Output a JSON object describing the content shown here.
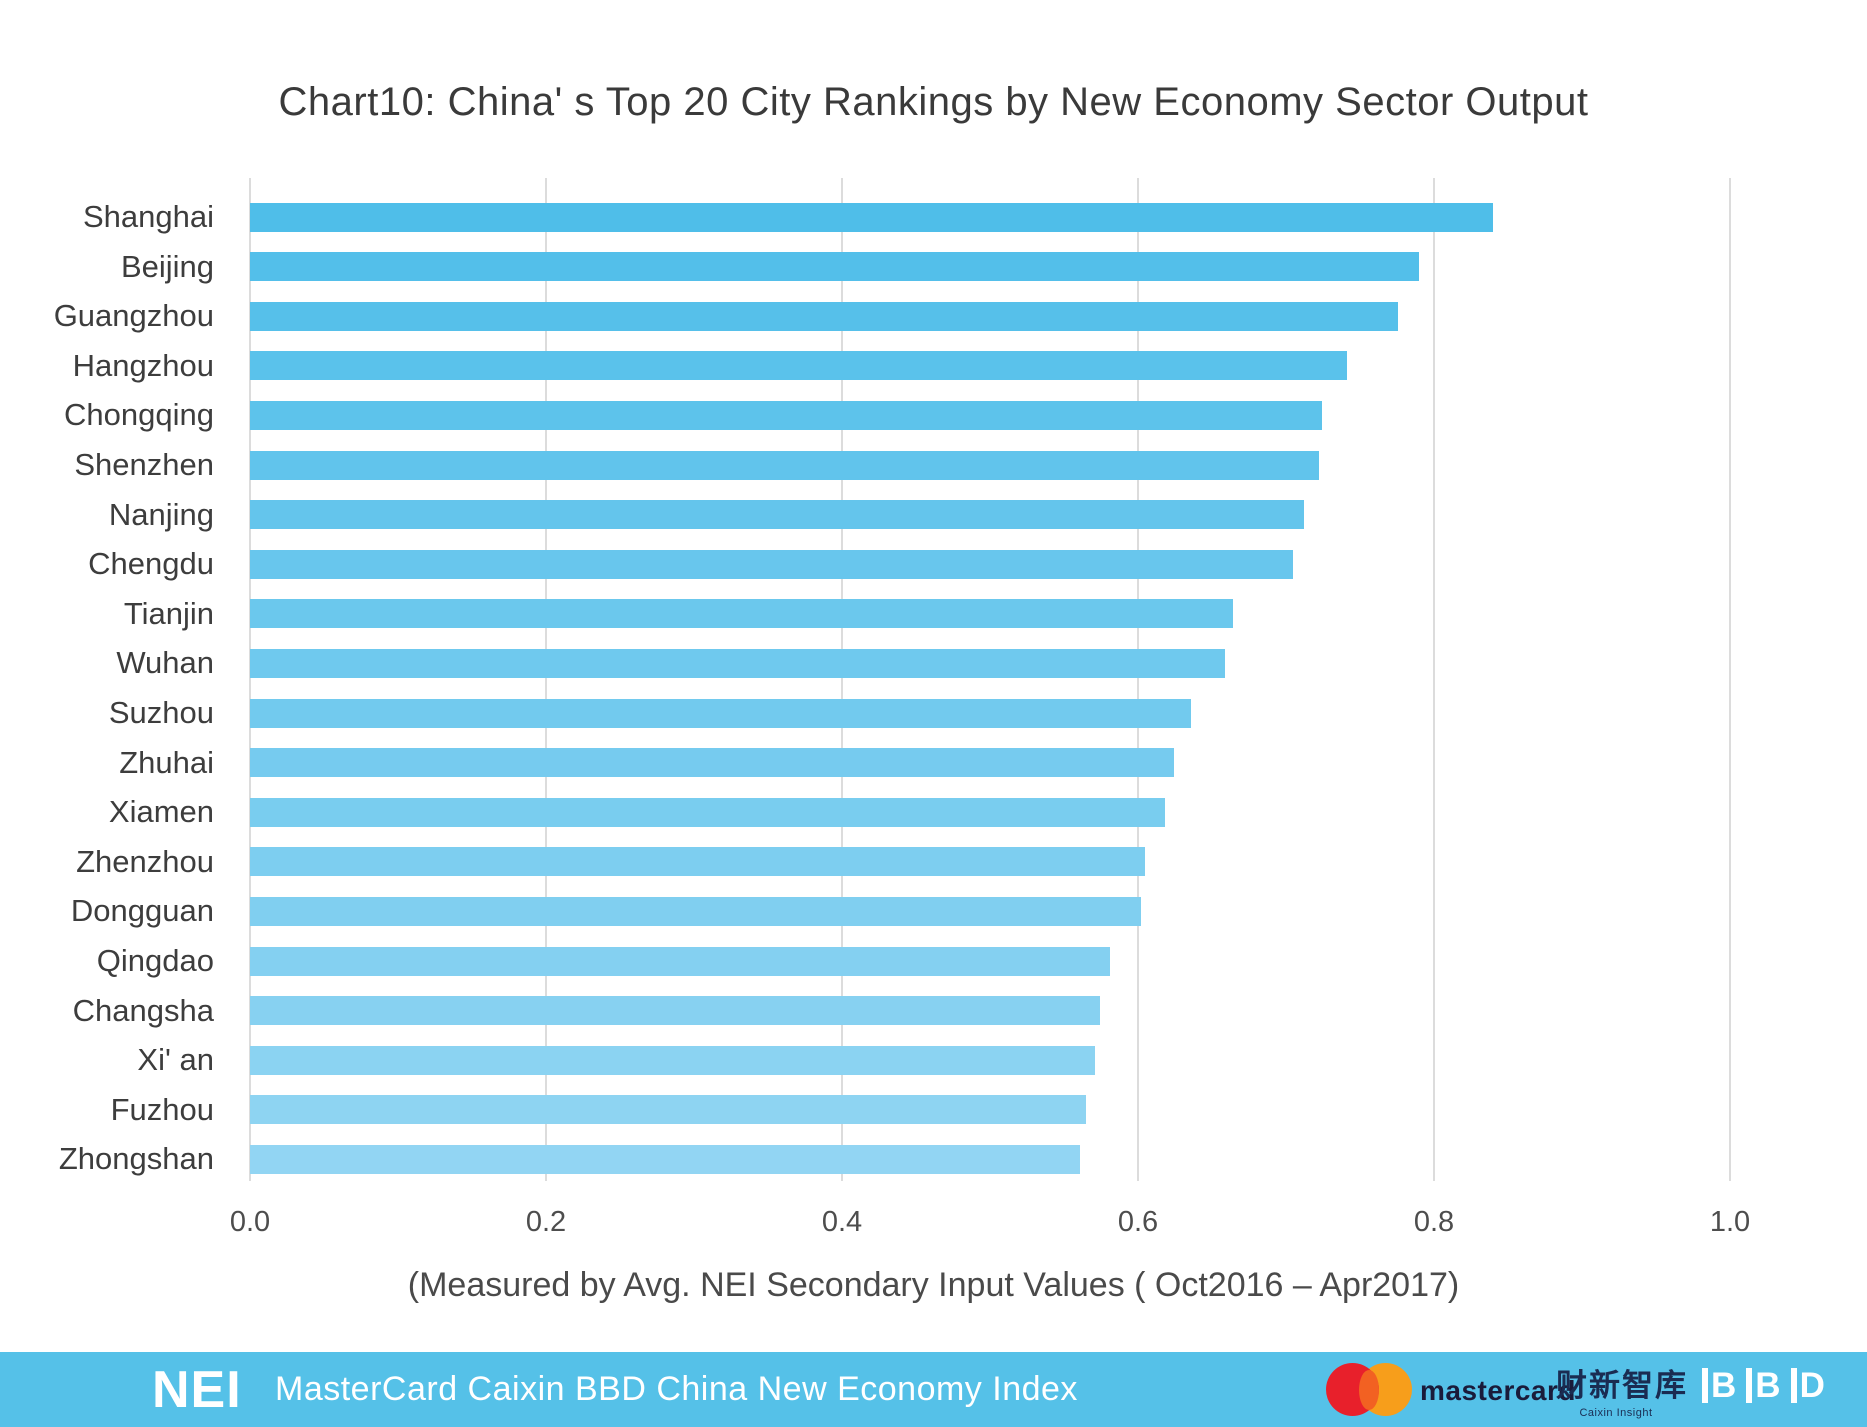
{
  "title": "Chart10: China' s Top 20 City Rankings by New Economy Sector Output",
  "chart_data": {
    "type": "bar",
    "orientation": "horizontal",
    "title": "Chart10: China' s Top 20 City Rankings by New Economy Sector Output",
    "subtitle": "(Measured by Avg. NEI Secondary Input Values ( Oct2016 – Apr2017)",
    "categories": [
      "Shanghai",
      "Beijing",
      "Guangzhou",
      "Hangzhou",
      "Chongqing",
      "Shenzhen",
      "Nanjing",
      "Chengdu",
      "Tianjin",
      "Wuhan",
      "Suzhou",
      "Zhuhai",
      "Xiamen",
      "Zhenzhou",
      "Dongguan",
      "Qingdao",
      "Changsha",
      "Xi' an",
      "Fuzhou",
      "Zhongshan"
    ],
    "values": [
      0.84,
      0.79,
      0.776,
      0.741,
      0.724,
      0.722,
      0.712,
      0.705,
      0.664,
      0.659,
      0.636,
      0.624,
      0.618,
      0.605,
      0.602,
      0.581,
      0.574,
      0.571,
      0.565,
      0.561
    ],
    "xlim": [
      0.0,
      1.0
    ],
    "xtick_labels": [
      "0.0",
      "0.2",
      "0.4",
      "0.6",
      "0.8",
      "1.0"
    ],
    "xticks": [
      0.0,
      0.2,
      0.4,
      0.6,
      0.8,
      1.0
    ],
    "grid": true,
    "legend": "none",
    "colors": {
      "bar_top": "#4FBEE9",
      "bar_bottom": "#92D5F3",
      "gridline": "#dcdcdc"
    }
  },
  "footer": {
    "nei_logo": "NEI",
    "title": "MasterCard Caixin BBD China New Economy Index",
    "background": "#55C1E8",
    "mastercard": {
      "word": "mastercard",
      "circle_red": "#E8202B",
      "circle_orange": "#F79E1B",
      "overlap": "#F26122",
      "text_color": "#1A1B3A"
    },
    "caixin": {
      "cjk": "财新智库",
      "sub": "Caixin Insight",
      "text_color": "#1A2C52"
    },
    "bbd": {
      "letters": [
        "B",
        "B",
        "D"
      ]
    }
  }
}
